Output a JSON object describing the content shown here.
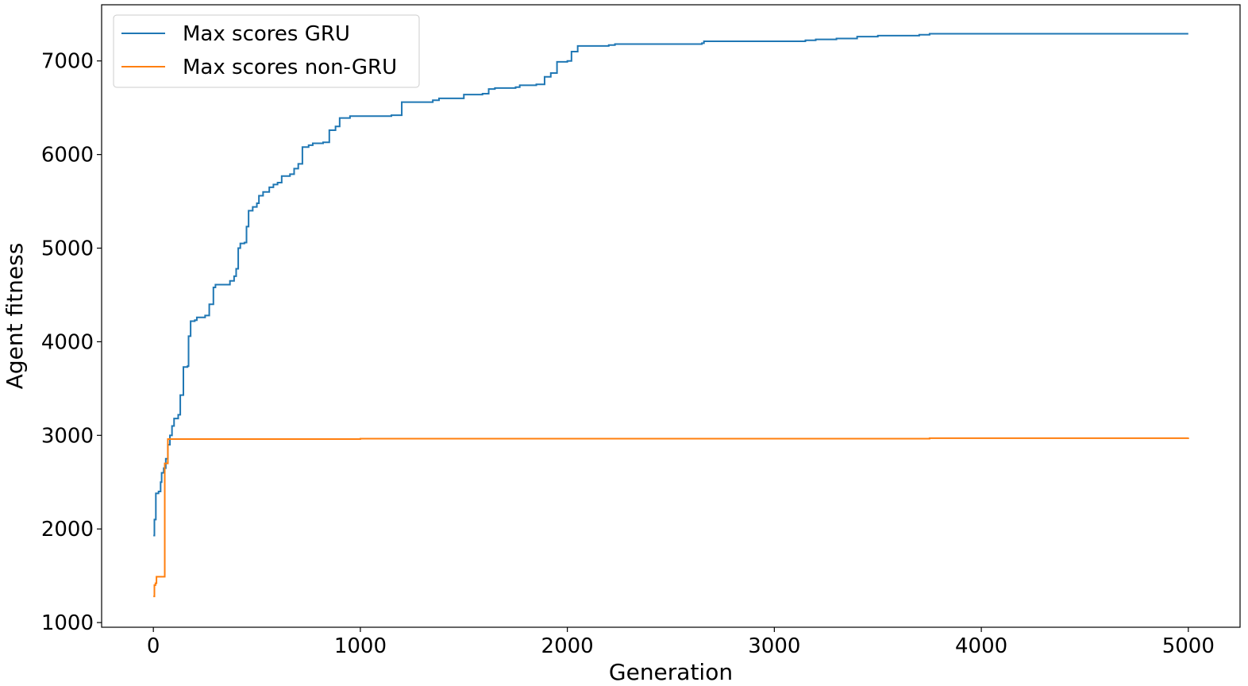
{
  "chart_data": {
    "type": "line",
    "title": "",
    "xlabel": "Generation",
    "ylabel": "Agent fitness",
    "xlim": [
      -250,
      5250
    ],
    "ylim": [
      950,
      7600
    ],
    "xticks": [
      0,
      1000,
      2000,
      3000,
      4000,
      5000
    ],
    "yticks": [
      1000,
      2000,
      3000,
      4000,
      5000,
      6000,
      7000
    ],
    "grid": false,
    "legend_placement": "top-left",
    "series": [
      {
        "name": "Max scores GRU",
        "color": "#1f77b4",
        "points": [
          [
            0,
            1930
          ],
          [
            5,
            2100
          ],
          [
            10,
            2100
          ],
          [
            12,
            2380
          ],
          [
            25,
            2400
          ],
          [
            35,
            2500
          ],
          [
            40,
            2600
          ],
          [
            50,
            2650
          ],
          [
            60,
            2750
          ],
          [
            70,
            2900
          ],
          [
            80,
            3000
          ],
          [
            90,
            3100
          ],
          [
            100,
            3180
          ],
          [
            120,
            3220
          ],
          [
            130,
            3430
          ],
          [
            145,
            3730
          ],
          [
            165,
            3740
          ],
          [
            170,
            4060
          ],
          [
            180,
            4220
          ],
          [
            200,
            4230
          ],
          [
            210,
            4260
          ],
          [
            250,
            4280
          ],
          [
            270,
            4400
          ],
          [
            290,
            4580
          ],
          [
            300,
            4610
          ],
          [
            350,
            4610
          ],
          [
            370,
            4650
          ],
          [
            390,
            4700
          ],
          [
            400,
            4780
          ],
          [
            410,
            5000
          ],
          [
            420,
            5050
          ],
          [
            440,
            5060
          ],
          [
            450,
            5230
          ],
          [
            460,
            5400
          ],
          [
            480,
            5440
          ],
          [
            500,
            5480
          ],
          [
            510,
            5560
          ],
          [
            530,
            5600
          ],
          [
            560,
            5650
          ],
          [
            580,
            5680
          ],
          [
            600,
            5700
          ],
          [
            620,
            5770
          ],
          [
            660,
            5790
          ],
          [
            680,
            5850
          ],
          [
            700,
            5900
          ],
          [
            720,
            6080
          ],
          [
            750,
            6100
          ],
          [
            770,
            6120
          ],
          [
            820,
            6130
          ],
          [
            850,
            6260
          ],
          [
            880,
            6300
          ],
          [
            900,
            6390
          ],
          [
            950,
            6410
          ],
          [
            1000,
            6410
          ],
          [
            1150,
            6420
          ],
          [
            1200,
            6560
          ],
          [
            1350,
            6580
          ],
          [
            1380,
            6600
          ],
          [
            1500,
            6640
          ],
          [
            1590,
            6650
          ],
          [
            1620,
            6700
          ],
          [
            1650,
            6710
          ],
          [
            1750,
            6720
          ],
          [
            1770,
            6740
          ],
          [
            1850,
            6750
          ],
          [
            1890,
            6830
          ],
          [
            1920,
            6870
          ],
          [
            1950,
            6990
          ],
          [
            2000,
            7000
          ],
          [
            2020,
            7100
          ],
          [
            2050,
            7160
          ],
          [
            2200,
            7170
          ],
          [
            2230,
            7180
          ],
          [
            2650,
            7190
          ],
          [
            2660,
            7210
          ],
          [
            3150,
            7220
          ],
          [
            3200,
            7230
          ],
          [
            3300,
            7240
          ],
          [
            3400,
            7260
          ],
          [
            3500,
            7270
          ],
          [
            3700,
            7280
          ],
          [
            3750,
            7290
          ],
          [
            5000,
            7290
          ]
        ]
      },
      {
        "name": "Max scores non-GRU",
        "color": "#ff7f0e",
        "points": [
          [
            0,
            1280
          ],
          [
            5,
            1400
          ],
          [
            10,
            1420
          ],
          [
            15,
            1490
          ],
          [
            55,
            1490
          ],
          [
            55,
            2700
          ],
          [
            70,
            2960
          ],
          [
            1000,
            2965
          ],
          [
            3750,
            2970
          ],
          [
            5000,
            2975
          ]
        ]
      }
    ]
  }
}
